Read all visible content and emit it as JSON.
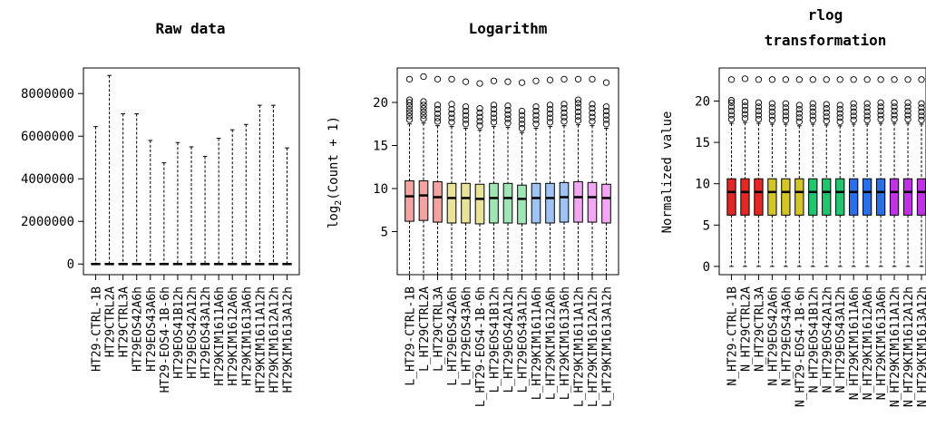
{
  "chart_data": [
    {
      "type": "box",
      "title": "Raw data",
      "ylabel": "",
      "ylim": [
        -500000,
        9200000
      ],
      "yticks": [
        "0",
        "2000000",
        "4000000",
        "6000000",
        "8000000"
      ],
      "ytick_values": [
        0,
        2000000,
        4000000,
        6000000,
        8000000
      ],
      "categories": [
        "HT29-CTRL-1B",
        "HT29CTRL2A",
        "HT29CTRL3A",
        "HT29EOS42A6h",
        "HT29EOS43A6h",
        "HT29-EOS4-1B-6h",
        "HT29EOS41B12h",
        "HT29EOS42A12h",
        "HT29EOS43A12h",
        "HT29KIM1611A6h",
        "HT29KIM1612A6h",
        "HT29KIM1613A6h",
        "HT29KIM1611A12h",
        "HT29KIM1612A12h",
        "HT29KIM1613A12h"
      ],
      "colors": [
        "#ffffff",
        "#ffffff",
        "#ffffff",
        "#ffffff",
        "#ffffff",
        "#ffffff",
        "#ffffff",
        "#ffffff",
        "#ffffff",
        "#ffffff",
        "#ffffff",
        "#ffffff",
        "#ffffff",
        "#ffffff",
        "#ffffff"
      ],
      "boxes": [
        {
          "min": 0,
          "q1": 0,
          "median": 0,
          "q3": 30000,
          "max": 6450000,
          "outliers": []
        },
        {
          "min": 0,
          "q1": 0,
          "median": 0,
          "q3": 30000,
          "max": 8850000,
          "outliers": []
        },
        {
          "min": 0,
          "q1": 0,
          "median": 0,
          "q3": 30000,
          "max": 7050000,
          "outliers": []
        },
        {
          "min": 0,
          "q1": 0,
          "median": 0,
          "q3": 30000,
          "max": 7050000,
          "outliers": []
        },
        {
          "min": 0,
          "q1": 0,
          "median": 0,
          "q3": 30000,
          "max": 5800000,
          "outliers": []
        },
        {
          "min": 0,
          "q1": 0,
          "median": 0,
          "q3": 30000,
          "max": 4750000,
          "outliers": []
        },
        {
          "min": 0,
          "q1": 0,
          "median": 0,
          "q3": 30000,
          "max": 5700000,
          "outliers": []
        },
        {
          "min": 0,
          "q1": 0,
          "median": 0,
          "q3": 30000,
          "max": 5500000,
          "outliers": []
        },
        {
          "min": 0,
          "q1": 0,
          "median": 0,
          "q3": 30000,
          "max": 5050000,
          "outliers": []
        },
        {
          "min": 0,
          "q1": 0,
          "median": 0,
          "q3": 30000,
          "max": 5900000,
          "outliers": []
        },
        {
          "min": 0,
          "q1": 0,
          "median": 0,
          "q3": 30000,
          "max": 6300000,
          "outliers": []
        },
        {
          "min": 0,
          "q1": 0,
          "median": 0,
          "q3": 30000,
          "max": 6550000,
          "outliers": []
        },
        {
          "min": 0,
          "q1": 0,
          "median": 0,
          "q3": 30000,
          "max": 7450000,
          "outliers": []
        },
        {
          "min": 0,
          "q1": 0,
          "median": 0,
          "q3": 30000,
          "max": 7450000,
          "outliers": []
        },
        {
          "min": 0,
          "q1": 0,
          "median": 0,
          "q3": 30000,
          "max": 5450000,
          "outliers": []
        }
      ]
    },
    {
      "type": "box",
      "title": "Logarithm",
      "ylabel_main": "log",
      "ylabel_sub": "2",
      "ylabel_rest": "(Count + 1)",
      "ylim": [
        0,
        24
      ],
      "yticks": [
        "5",
        "10",
        "15",
        "20"
      ],
      "ytick_values": [
        5,
        10,
        15,
        20
      ],
      "categories": [
        "L_HT29-CTRL-1B",
        "L_HT29CTRL2A",
        "L_HT29CTRL3A",
        "L_HT29EOS42A6h",
        "L_HT29EOS43A6h",
        "L_HT29-EOS4-1B-6h",
        "L_HT29EOS41B12h",
        "L_HT29EOS42A12h",
        "L_HT29EOS43A12h",
        "L_HT29KIM1611A6h",
        "L_HT29KIM1612A6h",
        "L_HT29KIM1613A6h",
        "L_HT29KIM1611A12h",
        "L_HT29KIM1612A12h",
        "L_HT29KIM1613A12h"
      ],
      "colors": [
        "#f4a3a3",
        "#f4a3a3",
        "#f4a3a3",
        "#e8e29a",
        "#e8e29a",
        "#e8e29a",
        "#9fe5b5",
        "#9fe5b5",
        "#9fe5b5",
        "#9fc3f2",
        "#9fc3f2",
        "#9fc3f2",
        "#f0a8f2",
        "#f0a8f2",
        "#f0a8f2"
      ],
      "boxes": [
        {
          "min": 0,
          "q1": 6.2,
          "median": 9.1,
          "q3": 10.9,
          "max": 17.5,
          "outliers": [
            18.0,
            18.4,
            18.8,
            19.2,
            19.6,
            20.0,
            20.3,
            22.7
          ]
        },
        {
          "min": 0,
          "q1": 6.3,
          "median": 9.2,
          "q3": 10.9,
          "max": 17.6,
          "outliers": [
            18.1,
            18.5,
            18.9,
            19.3,
            19.7,
            20.1,
            23.0
          ]
        },
        {
          "min": 0,
          "q1": 6.1,
          "median": 9.0,
          "q3": 10.8,
          "max": 17.3,
          "outliers": [
            17.8,
            18.2,
            18.7,
            19.2,
            19.7,
            22.7
          ]
        },
        {
          "min": 0,
          "q1": 6.0,
          "median": 8.9,
          "q3": 10.6,
          "max": 17.2,
          "outliers": [
            17.7,
            18.2,
            18.7,
            19.2,
            19.8,
            22.7
          ]
        },
        {
          "min": 0,
          "q1": 6.0,
          "median": 8.9,
          "q3": 10.6,
          "max": 17.0,
          "outliers": [
            17.5,
            18.0,
            18.5,
            19.0,
            19.5,
            22.4
          ]
        },
        {
          "min": 0,
          "q1": 5.9,
          "median": 8.8,
          "q3": 10.5,
          "max": 16.8,
          "outliers": [
            17.3,
            17.8,
            18.3,
            18.8,
            19.3,
            22.2
          ]
        },
        {
          "min": 0,
          "q1": 6.0,
          "median": 8.9,
          "q3": 10.6,
          "max": 17.2,
          "outliers": [
            17.7,
            18.2,
            18.7,
            19.2,
            19.7,
            22.5
          ]
        },
        {
          "min": 0,
          "q1": 6.0,
          "median": 8.9,
          "q3": 10.6,
          "max": 17.1,
          "outliers": [
            17.6,
            18.1,
            18.6,
            19.1,
            19.6,
            22.4
          ]
        },
        {
          "min": 0,
          "q1": 5.9,
          "median": 8.8,
          "q3": 10.4,
          "max": 16.5,
          "outliers": [
            17.0,
            17.5,
            18.0,
            18.5,
            19.0,
            22.3
          ]
        },
        {
          "min": 0,
          "q1": 6.0,
          "median": 8.9,
          "q3": 10.6,
          "max": 17.0,
          "outliers": [
            17.5,
            18.0,
            18.5,
            19.0,
            19.5,
            22.5
          ]
        },
        {
          "min": 0,
          "q1": 6.0,
          "median": 8.9,
          "q3": 10.6,
          "max": 17.2,
          "outliers": [
            17.7,
            18.2,
            18.7,
            19.2,
            19.7,
            22.6
          ]
        },
        {
          "min": 0,
          "q1": 6.1,
          "median": 9.0,
          "q3": 10.7,
          "max": 17.3,
          "outliers": [
            17.8,
            18.3,
            18.8,
            19.3,
            19.8,
            22.7
          ]
        },
        {
          "min": 0,
          "q1": 6.1,
          "median": 9.0,
          "q3": 10.8,
          "max": 17.4,
          "outliers": [
            17.9,
            18.4,
            18.9,
            19.4,
            19.9,
            20.3,
            22.7
          ]
        },
        {
          "min": 0,
          "q1": 6.1,
          "median": 9.0,
          "q3": 10.7,
          "max": 17.3,
          "outliers": [
            17.8,
            18.3,
            18.8,
            19.3,
            19.8,
            22.7
          ]
        },
        {
          "min": 0,
          "q1": 6.0,
          "median": 8.9,
          "q3": 10.5,
          "max": 17.0,
          "outliers": [
            17.5,
            18.0,
            18.5,
            19.0,
            19.5,
            22.3
          ]
        }
      ]
    },
    {
      "type": "box",
      "title_line1": "rlog",
      "title_line2": "transformation",
      "ylabel": "Normalized value",
      "ylim": [
        -1,
        24
      ],
      "yticks": [
        "0",
        "5",
        "10",
        "15",
        "20"
      ],
      "ytick_values": [
        0,
        5,
        10,
        15,
        20
      ],
      "categories": [
        "N_HT29-CTRL-1B",
        "N_HT29CTRL2A",
        "N_HT29CTRL3A",
        "N_HT29EOS42A6h",
        "N_HT29EOS43A6h",
        "N_HT29-EOS4-1B-6h",
        "N_HT29EOS41B12h",
        "N_HT29EOS42A12h",
        "N_HT29EOS43A12h",
        "N_HT29KIM1611A6h",
        "N_HT29KIM1612A6h",
        "N_HT29KIM1613A6h",
        "N_HT29KIM1611A12h",
        "N_HT29KIM1612A12h",
        "N_HT29KIM1613A12h"
      ],
      "colors": [
        "#e32626",
        "#e32626",
        "#e32626",
        "#d4c425",
        "#d4c425",
        "#d4c425",
        "#22c56e",
        "#22c56e",
        "#22c56e",
        "#2b6fe8",
        "#2b6fe8",
        "#2b6fe8",
        "#c032e6",
        "#c032e6",
        "#c032e6"
      ],
      "boxes": [
        {
          "min": 0,
          "q1": 6.2,
          "median": 9.0,
          "q3": 10.6,
          "max": 17.3,
          "outliers": [
            17.8,
            18.3,
            18.8,
            19.3,
            19.8,
            20.1,
            22.6
          ]
        },
        {
          "min": 0,
          "q1": 6.2,
          "median": 9.0,
          "q3": 10.6,
          "max": 17.4,
          "outliers": [
            17.9,
            18.4,
            18.9,
            19.4,
            19.9,
            22.7
          ]
        },
        {
          "min": 0,
          "q1": 6.2,
          "median": 9.0,
          "q3": 10.6,
          "max": 17.3,
          "outliers": [
            17.8,
            18.3,
            18.8,
            19.3,
            19.8,
            22.6
          ]
        },
        {
          "min": 0,
          "q1": 6.2,
          "median": 9.0,
          "q3": 10.6,
          "max": 17.2,
          "outliers": [
            17.7,
            18.2,
            18.7,
            19.2,
            19.7,
            22.6
          ]
        },
        {
          "min": 0,
          "q1": 6.2,
          "median": 9.0,
          "q3": 10.6,
          "max": 17.2,
          "outliers": [
            17.7,
            18.2,
            18.7,
            19.2,
            19.7,
            22.6
          ]
        },
        {
          "min": 0,
          "q1": 6.2,
          "median": 9.0,
          "q3": 10.6,
          "max": 17.0,
          "outliers": [
            17.5,
            18.0,
            18.5,
            19.0,
            19.5,
            22.6
          ]
        },
        {
          "min": 0,
          "q1": 6.2,
          "median": 9.0,
          "q3": 10.6,
          "max": 17.2,
          "outliers": [
            17.7,
            18.2,
            18.7,
            19.2,
            19.7,
            22.6
          ]
        },
        {
          "min": 0,
          "q1": 6.2,
          "median": 9.0,
          "q3": 10.6,
          "max": 17.1,
          "outliers": [
            17.6,
            18.1,
            18.6,
            19.1,
            19.6,
            22.6
          ]
        },
        {
          "min": 0,
          "q1": 6.2,
          "median": 9.0,
          "q3": 10.6,
          "max": 17.0,
          "outliers": [
            17.5,
            18.0,
            18.5,
            19.0,
            19.5,
            22.6
          ]
        },
        {
          "min": 0,
          "q1": 6.2,
          "median": 9.0,
          "q3": 10.6,
          "max": 17.2,
          "outliers": [
            17.7,
            18.2,
            18.7,
            19.2,
            19.7,
            22.6
          ]
        },
        {
          "min": 0,
          "q1": 6.2,
          "median": 9.0,
          "q3": 10.6,
          "max": 17.2,
          "outliers": [
            17.7,
            18.2,
            18.7,
            19.2,
            19.7,
            22.6
          ]
        },
        {
          "min": 0,
          "q1": 6.2,
          "median": 9.0,
          "q3": 10.6,
          "max": 17.3,
          "outliers": [
            17.8,
            18.3,
            18.8,
            19.3,
            19.8,
            22.6
          ]
        },
        {
          "min": 0,
          "q1": 6.2,
          "median": 9.0,
          "q3": 10.6,
          "max": 17.3,
          "outliers": [
            17.8,
            18.3,
            18.8,
            19.3,
            19.8,
            22.6
          ]
        },
        {
          "min": 0,
          "q1": 6.2,
          "median": 9.0,
          "q3": 10.6,
          "max": 17.3,
          "outliers": [
            17.8,
            18.3,
            18.8,
            19.3,
            19.8,
            22.6
          ]
        },
        {
          "min": 0,
          "q1": 6.2,
          "median": 9.0,
          "q3": 10.6,
          "max": 17.2,
          "outliers": [
            17.7,
            18.2,
            18.7,
            19.2,
            19.7,
            22.6
          ]
        }
      ]
    }
  ]
}
